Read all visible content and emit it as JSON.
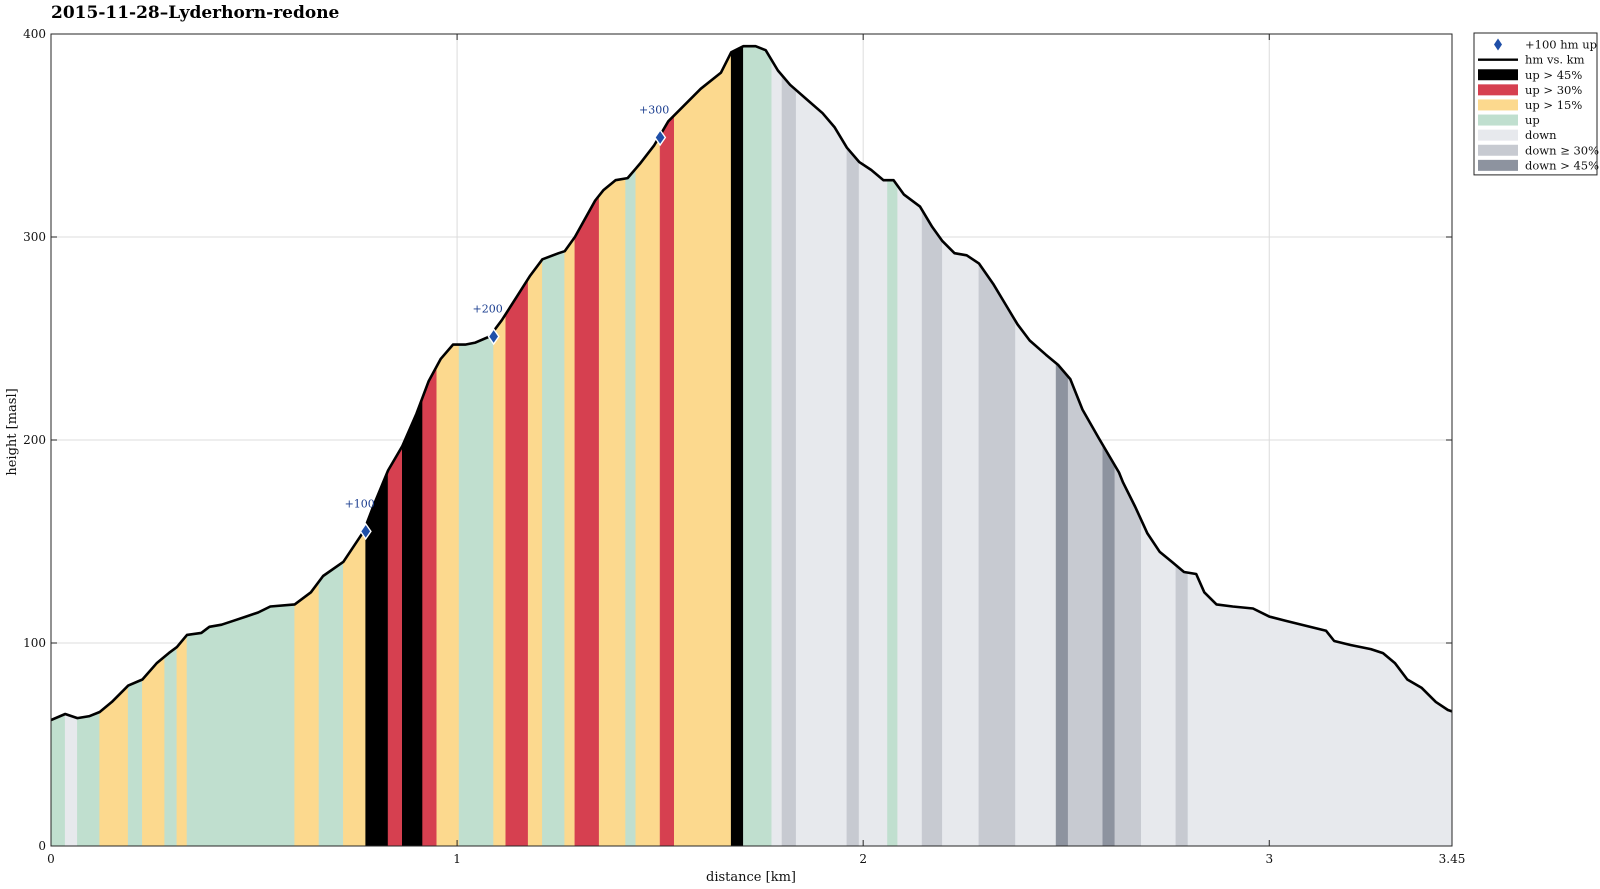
{
  "chart_data": {
    "type": "area",
    "title": "2015-11-28–Lyderhorn-redone",
    "xlabel": "distance [km]",
    "ylabel": "height [masl]",
    "xlim": [
      0,
      3.45
    ],
    "ylim": [
      0,
      400
    ],
    "xticks": [
      0,
      1,
      2,
      3,
      3.45
    ],
    "xtick_labels": [
      "0",
      "1",
      "2",
      "3",
      "3.45"
    ],
    "yticks": [
      0,
      100,
      200,
      300,
      400
    ],
    "ytick_labels": [
      "0",
      "100",
      "200",
      "300",
      "400"
    ],
    "grid": true,
    "legend_position": "outside top-right",
    "legend": [
      {
        "label": "+100 hm up",
        "marker": "diamond",
        "color": "#1f4fa8"
      },
      {
        "label": "hm vs. km",
        "marker": "line",
        "color": "#000000"
      },
      {
        "label": "up > 45%",
        "marker": "patch",
        "color": "#000000"
      },
      {
        "label": "up > 30%",
        "marker": "patch",
        "color": "#d64050"
      },
      {
        "label": "up > 15%",
        "marker": "patch",
        "color": "#fcd98e"
      },
      {
        "label": "up",
        "marker": "patch",
        "color": "#c0dfcf"
      },
      {
        "label": "down",
        "marker": "patch",
        "color": "#e7e9ed"
      },
      {
        "label": "down ≥ 30%",
        "marker": "patch",
        "color": "#c7cad1"
      },
      {
        "label": "down > 45%",
        "marker": "patch",
        "color": "#8d939f"
      }
    ],
    "category_colors": {
      "up45": "#000000",
      "up30": "#d64050",
      "up15": "#fcd98e",
      "up": "#c0dfcf",
      "down": "#e7e9ed",
      "down30": "#c7cad1",
      "down45": "#8d939f"
    },
    "profile": [
      [
        0.0,
        62
      ],
      [
        0.035,
        65
      ],
      [
        0.065,
        63
      ],
      [
        0.095,
        64
      ],
      [
        0.12,
        66
      ],
      [
        0.15,
        71
      ],
      [
        0.19,
        79
      ],
      [
        0.225,
        82
      ],
      [
        0.26,
        90
      ],
      [
        0.29,
        95
      ],
      [
        0.31,
        98
      ],
      [
        0.335,
        104
      ],
      [
        0.37,
        105
      ],
      [
        0.39,
        108
      ],
      [
        0.42,
        109
      ],
      [
        0.45,
        111
      ],
      [
        0.48,
        113
      ],
      [
        0.51,
        115
      ],
      [
        0.54,
        118
      ],
      [
        0.6,
        119
      ],
      [
        0.64,
        125
      ],
      [
        0.67,
        133
      ],
      [
        0.72,
        140
      ],
      [
        0.77,
        155
      ],
      [
        0.795,
        168
      ],
      [
        0.83,
        185
      ],
      [
        0.865,
        197
      ],
      [
        0.9,
        213
      ],
      [
        0.93,
        229
      ],
      [
        0.96,
        240
      ],
      [
        0.99,
        247
      ],
      [
        1.02,
        247
      ],
      [
        1.045,
        248
      ],
      [
        1.08,
        251
      ],
      [
        1.11,
        259
      ],
      [
        1.145,
        270
      ],
      [
        1.18,
        281
      ],
      [
        1.21,
        289
      ],
      [
        1.25,
        292
      ],
      [
        1.265,
        293
      ],
      [
        1.29,
        300
      ],
      [
        1.34,
        318
      ],
      [
        1.36,
        323
      ],
      [
        1.39,
        328
      ],
      [
        1.42,
        329
      ],
      [
        1.45,
        336
      ],
      [
        1.485,
        345
      ],
      [
        1.52,
        357
      ],
      [
        1.56,
        365
      ],
      [
        1.6,
        373
      ],
      [
        1.65,
        381
      ],
      [
        1.675,
        391
      ],
      [
        1.705,
        394
      ],
      [
        1.735,
        394
      ],
      [
        1.76,
        392
      ],
      [
        1.79,
        382
      ],
      [
        1.82,
        375
      ],
      [
        1.86,
        368
      ],
      [
        1.9,
        361
      ],
      [
        1.93,
        354
      ],
      [
        1.96,
        344
      ],
      [
        1.99,
        337
      ],
      [
        2.02,
        333
      ],
      [
        2.05,
        328
      ],
      [
        2.075,
        328
      ],
      [
        2.1,
        321
      ],
      [
        2.14,
        315
      ],
      [
        2.17,
        305
      ],
      [
        2.195,
        298
      ],
      [
        2.225,
        292
      ],
      [
        2.255,
        291
      ],
      [
        2.285,
        287
      ],
      [
        2.32,
        277
      ],
      [
        2.35,
        267
      ],
      [
        2.38,
        257
      ],
      [
        2.41,
        249
      ],
      [
        2.45,
        242
      ],
      [
        2.48,
        237
      ],
      [
        2.51,
        230
      ],
      [
        2.54,
        215
      ],
      [
        2.58,
        201
      ],
      [
        2.63,
        184
      ],
      [
        2.64,
        179
      ],
      [
        2.67,
        167
      ],
      [
        2.7,
        154
      ],
      [
        2.73,
        145
      ],
      [
        2.76,
        140
      ],
      [
        2.79,
        135
      ],
      [
        2.82,
        134
      ],
      [
        2.84,
        125
      ],
      [
        2.87,
        119
      ],
      [
        2.91,
        118
      ],
      [
        2.96,
        117
      ],
      [
        3.0,
        113
      ],
      [
        3.04,
        111
      ],
      [
        3.08,
        109
      ],
      [
        3.14,
        106
      ],
      [
        3.16,
        101
      ],
      [
        3.2,
        99
      ],
      [
        3.25,
        97
      ],
      [
        3.28,
        95
      ],
      [
        3.31,
        90
      ],
      [
        3.34,
        82
      ],
      [
        3.375,
        78
      ],
      [
        3.41,
        71
      ],
      [
        3.44,
        67
      ],
      [
        3.47,
        65
      ],
      [
        3.5,
        63
      ]
    ],
    "segments": [
      {
        "x0": 0.0,
        "x1": 0.035,
        "cat": "up"
      },
      {
        "x0": 0.035,
        "x1": 0.065,
        "cat": "down"
      },
      {
        "x0": 0.065,
        "x1": 0.12,
        "cat": "up"
      },
      {
        "x0": 0.12,
        "x1": 0.19,
        "cat": "up15"
      },
      {
        "x0": 0.19,
        "x1": 0.225,
        "cat": "up"
      },
      {
        "x0": 0.225,
        "x1": 0.28,
        "cat": "up15"
      },
      {
        "x0": 0.28,
        "x1": 0.31,
        "cat": "up"
      },
      {
        "x0": 0.31,
        "x1": 0.335,
        "cat": "up15"
      },
      {
        "x0": 0.335,
        "x1": 0.6,
        "cat": "up"
      },
      {
        "x0": 0.6,
        "x1": 0.66,
        "cat": "up15"
      },
      {
        "x0": 0.66,
        "x1": 0.72,
        "cat": "up"
      },
      {
        "x0": 0.72,
        "x1": 0.775,
        "cat": "up15"
      },
      {
        "x0": 0.775,
        "x1": 0.83,
        "cat": "up45"
      },
      {
        "x0": 0.83,
        "x1": 0.865,
        "cat": "up30"
      },
      {
        "x0": 0.865,
        "x1": 0.915,
        "cat": "up45"
      },
      {
        "x0": 0.915,
        "x1": 0.95,
        "cat": "up30"
      },
      {
        "x0": 0.95,
        "x1": 1.005,
        "cat": "up15"
      },
      {
        "x0": 1.005,
        "x1": 1.09,
        "cat": "up"
      },
      {
        "x0": 1.09,
        "x1": 1.12,
        "cat": "up15"
      },
      {
        "x0": 1.12,
        "x1": 1.175,
        "cat": "up30"
      },
      {
        "x0": 1.175,
        "x1": 1.21,
        "cat": "up15"
      },
      {
        "x0": 1.21,
        "x1": 1.265,
        "cat": "up"
      },
      {
        "x0": 1.265,
        "x1": 1.29,
        "cat": "up15"
      },
      {
        "x0": 1.29,
        "x1": 1.35,
        "cat": "up30"
      },
      {
        "x0": 1.35,
        "x1": 1.415,
        "cat": "up15"
      },
      {
        "x0": 1.415,
        "x1": 1.44,
        "cat": "up"
      },
      {
        "x0": 1.44,
        "x1": 1.5,
        "cat": "up15"
      },
      {
        "x0": 1.5,
        "x1": 1.535,
        "cat": "up30"
      },
      {
        "x0": 1.535,
        "x1": 1.675,
        "cat": "up15"
      },
      {
        "x0": 1.675,
        "x1": 1.705,
        "cat": "up45"
      },
      {
        "x0": 1.705,
        "x1": 1.775,
        "cat": "up"
      },
      {
        "x0": 1.775,
        "x1": 1.8,
        "cat": "down"
      },
      {
        "x0": 1.8,
        "x1": 1.835,
        "cat": "down30"
      },
      {
        "x0": 1.835,
        "x1": 1.96,
        "cat": "down"
      },
      {
        "x0": 1.96,
        "x1": 1.99,
        "cat": "down30"
      },
      {
        "x0": 1.99,
        "x1": 2.06,
        "cat": "down"
      },
      {
        "x0": 2.06,
        "x1": 2.085,
        "cat": "up"
      },
      {
        "x0": 2.085,
        "x1": 2.145,
        "cat": "down"
      },
      {
        "x0": 2.145,
        "x1": 2.195,
        "cat": "down30"
      },
      {
        "x0": 2.195,
        "x1": 2.285,
        "cat": "down"
      },
      {
        "x0": 2.285,
        "x1": 2.375,
        "cat": "down30"
      },
      {
        "x0": 2.375,
        "x1": 2.475,
        "cat": "down"
      },
      {
        "x0": 2.475,
        "x1": 2.505,
        "cat": "down45"
      },
      {
        "x0": 2.505,
        "x1": 2.59,
        "cat": "down30"
      },
      {
        "x0": 2.59,
        "x1": 2.62,
        "cat": "down45"
      },
      {
        "x0": 2.62,
        "x1": 2.685,
        "cat": "down30"
      },
      {
        "x0": 2.685,
        "x1": 2.77,
        "cat": "down"
      },
      {
        "x0": 2.77,
        "x1": 2.8,
        "cat": "down30"
      },
      {
        "x0": 2.8,
        "x1": 3.45,
        "cat": "down"
      },
      {
        "x0": 3.45,
        "x1": 3.475,
        "cat": "up"
      },
      {
        "x0": 3.475,
        "x1": 3.5,
        "cat": "down"
      }
    ],
    "markers": [
      {
        "x": 0.775,
        "y": 155,
        "label": "+100"
      },
      {
        "x": 1.09,
        "y": 251,
        "label": "+200"
      },
      {
        "x": 1.5,
        "y": 349,
        "label": "+300"
      }
    ]
  }
}
